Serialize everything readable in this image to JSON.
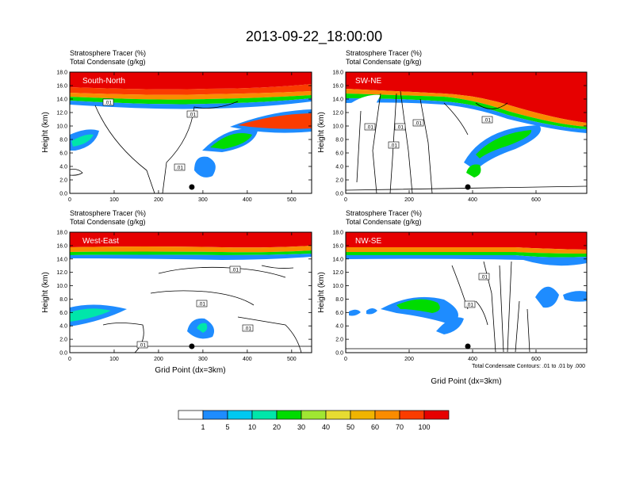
{
  "chart_data": {
    "type": "heatmap",
    "title": "2013-09-22_18:00:00",
    "footnote": "Total Condensate Contours: .01 to .01 by .000",
    "xlabel": "Grid Point (dx=3km)",
    "ylabel": "Height (km)",
    "y_ticks": [
      "0.0",
      "2.0",
      "4.0",
      "6.0",
      "8.0",
      "10.0",
      "12.0",
      "14.0",
      "16.0",
      "18.0"
    ],
    "ylim": [
      0,
      18
    ],
    "colorbar": {
      "labels": [
        "1",
        "5",
        "10",
        "20",
        "30",
        "40",
        "50",
        "60",
        "70",
        "100"
      ],
      "colors": [
        "#ffffff",
        "#1e8cff",
        "#00c8f0",
        "#00e6aa",
        "#00dc00",
        "#a0e632",
        "#e6dc32",
        "#f0b400",
        "#fa8c00",
        "#fa3c00",
        "#e60000"
      ]
    },
    "panels": [
      {
        "name": "South-North",
        "subtitle1": "Stratosphere Tracer   (%)",
        "subtitle2": "Total Condensate   (g/kg)",
        "xlim": [
          0,
          545
        ],
        "x_ticks": [
          "0",
          "100",
          "200",
          "300",
          "400",
          "500"
        ],
        "x_tick_values": [
          0,
          100,
          200,
          300,
          400,
          500
        ],
        "marker_x": 275,
        "contour_labels": [
          ".01",
          ".01",
          ".01"
        ]
      },
      {
        "name": "SW-NE",
        "subtitle1": "Stratosphere Tracer   (%)",
        "subtitle2": "Total Condensate   (g/kg)",
        "xlim": [
          0,
          760
        ],
        "x_ticks": [
          "0",
          "200",
          "400",
          "600"
        ],
        "x_tick_values": [
          0,
          200,
          400,
          600
        ],
        "marker_x": 385,
        "contour_labels": [
          ".01",
          ".01",
          ".01",
          ".01",
          ".01"
        ]
      },
      {
        "name": "West-East",
        "subtitle1": "Stratosphere Tracer   (%)",
        "subtitle2": "Total Condensate   (g/kg)",
        "xlim": [
          0,
          545
        ],
        "x_ticks": [
          "0",
          "100",
          "200",
          "300",
          "400",
          "500"
        ],
        "x_tick_values": [
          0,
          100,
          200,
          300,
          400,
          500
        ],
        "marker_x": 275,
        "contour_labels": [
          ".01",
          ".01",
          ".01",
          ".01"
        ]
      },
      {
        "name": "NW-SE",
        "subtitle1": "Stratosphere Tracer   (%)",
        "subtitle2": "Total Condensate   (g/kg)",
        "xlim": [
          0,
          760
        ],
        "x_ticks": [
          "0",
          "200",
          "400",
          "600"
        ],
        "x_tick_values": [
          0,
          200,
          400,
          600
        ],
        "marker_x": 385,
        "contour_labels": [
          ".01",
          ".01"
        ]
      }
    ]
  }
}
